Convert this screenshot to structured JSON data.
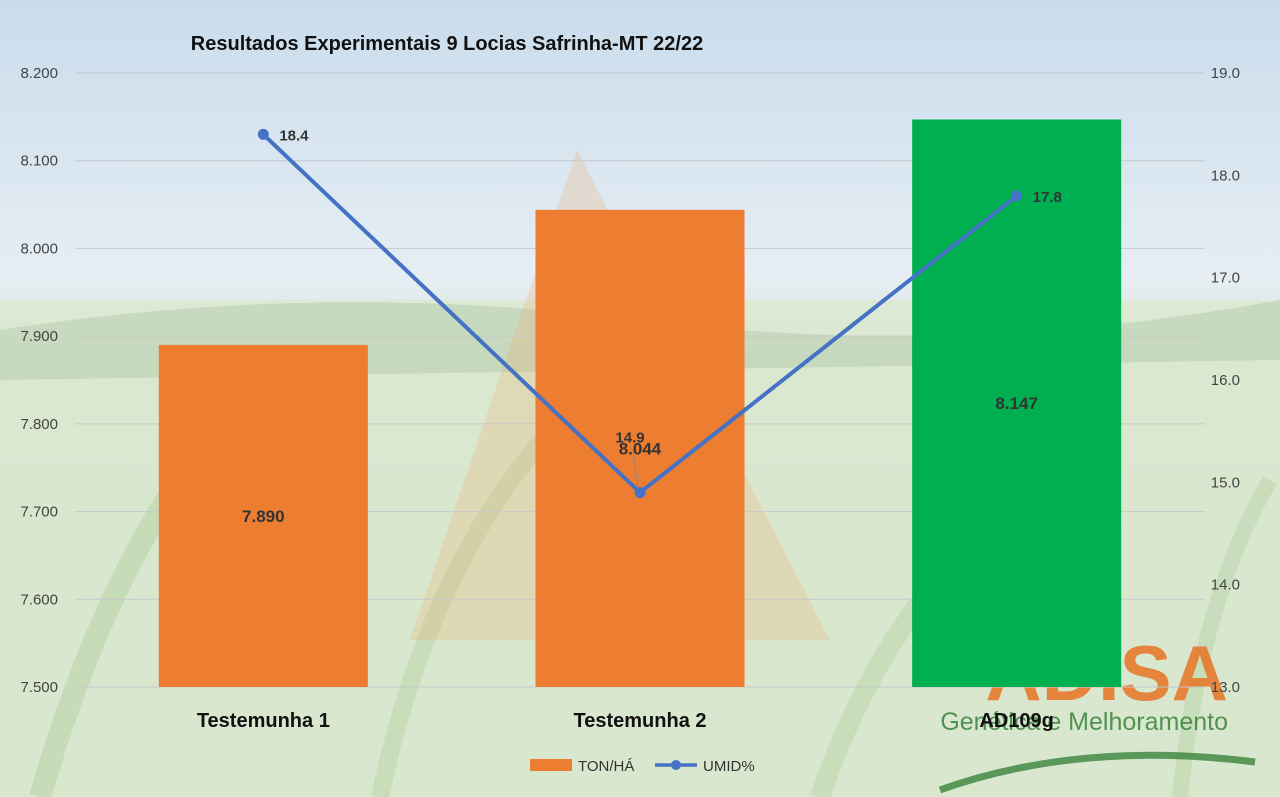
{
  "chart_data": {
    "type": "bar",
    "title": "Resultados Experimentais 9 Locias Safrinha-MT 22/22",
    "categories": [
      "Testemunha 1",
      "Testemunha 2",
      "AD109g"
    ],
    "series": [
      {
        "name": "TON/HÁ",
        "chart_type": "bar",
        "axis": "left",
        "values": [
          7.89,
          8.044,
          8.147
        ],
        "value_labels": [
          "7.890",
          "8.044",
          "8.147"
        ],
        "colors": [
          "#ED7D31",
          "#ED7D31",
          "#00B050"
        ]
      },
      {
        "name": "UMID%",
        "chart_type": "line",
        "axis": "right",
        "values": [
          18.4,
          14.9,
          17.8
        ],
        "value_labels": [
          "18.4",
          "14.9",
          "17.8"
        ],
        "color": "#4472C4"
      }
    ],
    "y_left": {
      "lim": [
        7.5,
        8.2
      ],
      "ticks": [
        "7.500",
        "7.600",
        "7.700",
        "7.800",
        "7.900",
        "8.000",
        "8.100",
        "8.200"
      ]
    },
    "y_right": {
      "lim": [
        13.0,
        19.0
      ],
      "ticks": [
        "13.0",
        "14.0",
        "15.0",
        "16.0",
        "17.0",
        "18.0",
        "19.0"
      ]
    },
    "grid": true,
    "legend_position": "bottom"
  },
  "watermark": {
    "logo_text": "ADISA",
    "tagline": "Genética e Melhoramento",
    "logo_color": "#e87424"
  }
}
